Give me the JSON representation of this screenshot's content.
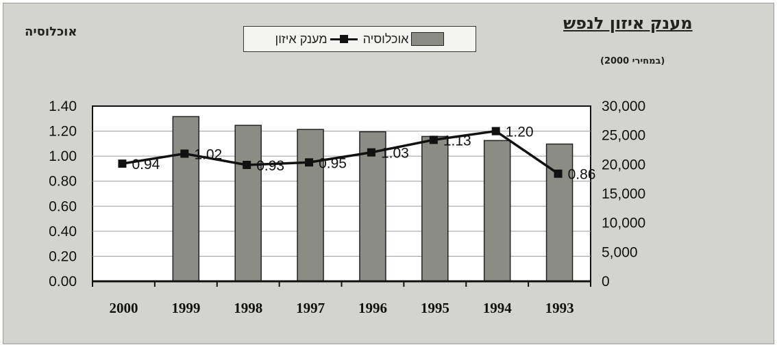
{
  "header": {
    "title": "מענק איזון לנפש",
    "subtitle": "(במחירי 2000)",
    "left_title": "אוכלוסיה"
  },
  "legend": {
    "line_label": "מענק איזון",
    "bar_label": "אוכלוסיה"
  },
  "chart_data": {
    "type": "bar",
    "categories": [
      "2000",
      "1999",
      "1998",
      "1997",
      "1996",
      "1995",
      "1994",
      "1993"
    ],
    "series": [
      {
        "name": "אוכלוסיה",
        "type": "bar",
        "axis": "right",
        "values": [
          null,
          28200,
          26700,
          26000,
          25600,
          24800,
          24100,
          23500
        ]
      },
      {
        "name": "מענק איזון",
        "type": "line",
        "axis": "left",
        "values": [
          0.94,
          1.02,
          0.93,
          0.95,
          1.03,
          1.13,
          1.2,
          0.86
        ],
        "labels": [
          "0.94",
          "1.02",
          "0.93",
          "0.95",
          "1.03",
          "1.13",
          "1.20",
          "0.86"
        ]
      }
    ],
    "y_left": {
      "range": [
        0,
        1.4
      ],
      "ticks": [
        "0.00",
        "0.20",
        "0.40",
        "0.60",
        "0.80",
        "1.00",
        "1.20",
        "1.40"
      ]
    },
    "y_right": {
      "range": [
        0,
        30000
      ],
      "ticks": [
        "0",
        "5,000",
        "10,000",
        "15,000",
        "20,000",
        "25,000",
        "30,000"
      ]
    },
    "grid": true,
    "legend_position": "top-center",
    "colors": {
      "bar": "#8b8d84",
      "line": "#111111",
      "plot_bg": "#ffffff",
      "frame_bg": "#d3d3cf"
    }
  }
}
